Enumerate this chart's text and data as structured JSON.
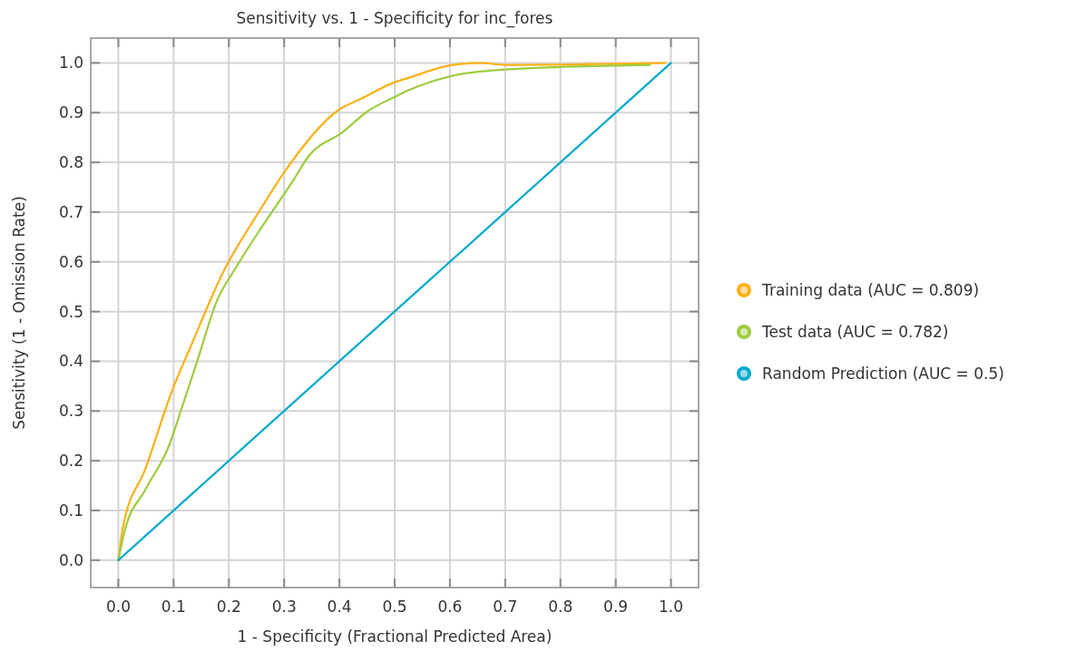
{
  "chart_data": {
    "type": "line",
    "title": "Sensitivity vs. 1 - Specificity for inc_fores",
    "xlabel": "1 - Specificity (Fractional Predicted Area)",
    "ylabel": "Sensitivity (1 - Omission Rate)",
    "xlim": [
      -0.05,
      1.05
    ],
    "ylim": [
      -0.055,
      1.05
    ],
    "xticks": [
      {
        "value": 0,
        "label": "0.0"
      },
      0.1,
      0.2,
      0.3,
      0.4,
      0.5,
      0.6,
      0.7,
      0.8,
      0.9,
      {
        "value": 1,
        "label": "1.0"
      }
    ],
    "yticks": [
      {
        "value": 0,
        "label": "0.0"
      },
      0.1,
      0.2,
      0.3,
      0.4,
      0.5,
      0.6,
      0.7,
      0.8,
      0.9,
      {
        "value": 1,
        "label": "1.0"
      }
    ],
    "grid": true,
    "legend": "right",
    "line_style": "solid",
    "series": [
      {
        "name": "Training data (AUC = 0.809)",
        "color": "#fbb116",
        "x": [
          0,
          0.008,
          0.049,
          0.098,
          0.131,
          0.19,
          0.254,
          0.3,
          0.398,
          0.443,
          0.497,
          0.525,
          0.6,
          0.656,
          0.7,
          0.99
        ],
        "values": [
          0,
          0.064,
          0.184,
          0.343,
          0.43,
          0.58,
          0.7,
          0.78,
          0.905,
          0.93,
          0.96,
          0.97,
          0.995,
          1.0,
          0.996,
          1.0
        ]
      },
      {
        "name": "Test data (AUC = 0.782)",
        "color": "#9ccc3c",
        "x": [
          0,
          0.011,
          0.049,
          0.093,
          0.115,
          0.142,
          0.18,
          0.208,
          0.257,
          0.316,
          0.344,
          0.405,
          0.454,
          0.497,
          0.525,
          0.6,
          0.7,
          0.962
        ],
        "values": [
          0,
          0.057,
          0.142,
          0.234,
          0.307,
          0.398,
          0.526,
          0.58,
          0.666,
          0.763,
          0.812,
          0.86,
          0.905,
          0.93,
          0.945,
          0.973,
          0.987,
          0.996
        ]
      },
      {
        "name": "Random Prediction (AUC = 0.5)",
        "color": "#00a9ce",
        "x": [
          0,
          1
        ],
        "values": [
          0,
          1
        ]
      }
    ]
  }
}
